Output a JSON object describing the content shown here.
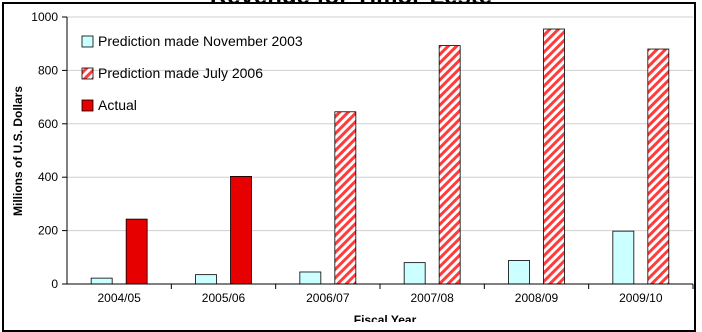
{
  "chart_data": {
    "type": "bar",
    "title": "Revenue for Timor-Leste",
    "xlabel": "Fiscal Year",
    "ylabel": "Millions of U.S. Dollars",
    "ylim": [
      0,
      1000
    ],
    "yticks": [
      0,
      200,
      400,
      600,
      800,
      1000
    ],
    "categories": [
      "2004/05",
      "2005/06",
      "2006/07",
      "2007/08",
      "2008/09",
      "2009/10"
    ],
    "grid": "horizontal",
    "legend_position": "top-left",
    "series": [
      {
        "name": "Prediction made November 2003",
        "values": [
          22,
          35,
          45,
          80,
          88,
          198
        ],
        "color": "#ccffff",
        "pattern": "solid"
      },
      {
        "name": "Prediction made July 2006",
        "values": [
          null,
          null,
          645,
          893,
          955,
          880
        ],
        "color": "#ff3b3b",
        "pattern": "diagonal-hatch"
      },
      {
        "name": "Actual",
        "values": [
          243,
          403,
          null,
          null,
          null,
          null
        ],
        "color": "#e60000",
        "pattern": "solid"
      }
    ]
  }
}
